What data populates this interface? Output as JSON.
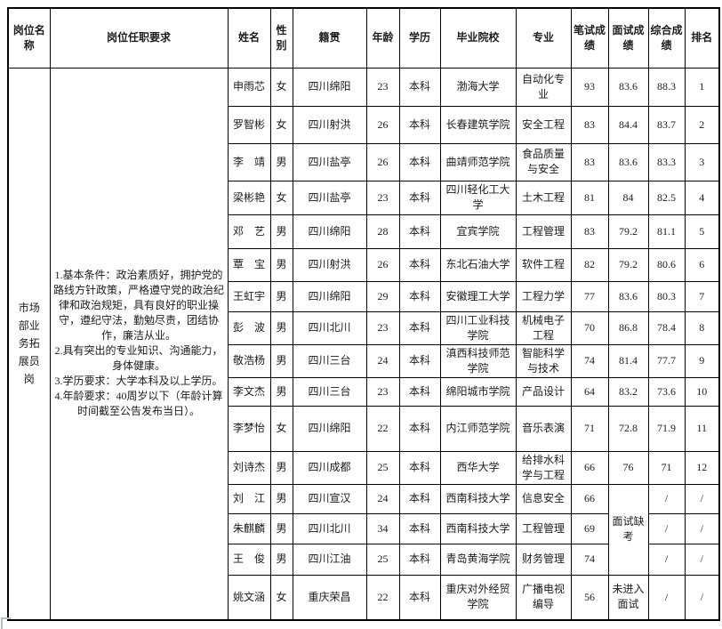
{
  "page": {
    "background_color": "#ffffff",
    "border_color": "#000000",
    "text_color": "#1c1c1c"
  },
  "table": {
    "headers": [
      "岗位名称",
      "岗位任职要求",
      "姓名",
      "性别",
      "籍贯",
      "年龄",
      "学历",
      "毕业院校",
      "专业",
      "笔试成绩",
      "面试成绩",
      "综合成绩",
      "排名"
    ],
    "position": {
      "name": "市场部业务拓展员岗",
      "requirements": "1.基本条件：政治素质好，拥护党的路线方针政策，严格遵守党的政治纪律和政治规矩，具有良好的职业操守，遵纪守法，勤勉尽责，团结协作，廉洁从业。\n2.具有突出的专业知识、沟通能力，身体健康。\n3.学历要求：大学本科及以上学历。\n4.年龄要求：40周岁以下（年龄计算时间截至公告发布当日）。"
    },
    "interview_merge": {
      "start_index": 12,
      "span": 3,
      "label": "面试缺考"
    },
    "rows": [
      {
        "name": "申雨芯",
        "gender": "女",
        "hometown": "四川绵阳",
        "age": "23",
        "education": "本科",
        "school": "渤海大学",
        "major": "自动化专业",
        "written": "93",
        "interview": "83.6",
        "overall": "88.3",
        "rank": "1"
      },
      {
        "name": "罗智彬",
        "gender": "女",
        "hometown": "四川射洪",
        "age": "26",
        "education": "本科",
        "school": "长春建筑学院",
        "major": "安全工程",
        "written": "83",
        "interview": "84.4",
        "overall": "83.7",
        "rank": "2"
      },
      {
        "name": "李　靖",
        "gender": "男",
        "hometown": "四川盐亭",
        "age": "26",
        "education": "本科",
        "school": "曲靖师范学院",
        "major": "食品质量与安全",
        "written": "83",
        "interview": "83.6",
        "overall": "83.3",
        "rank": "3"
      },
      {
        "name": "梁彬艳",
        "gender": "女",
        "hometown": "四川盐亭",
        "age": "23",
        "education": "本科",
        "school": "四川轻化工大学",
        "major": "土木工程",
        "written": "81",
        "interview": "84",
        "overall": "82.5",
        "rank": "4"
      },
      {
        "name": "邓　艺",
        "gender": "男",
        "hometown": "四川绵阳",
        "age": "28",
        "education": "本科",
        "school": "宜宾学院",
        "major": "工程管理",
        "written": "83",
        "interview": "79.2",
        "overall": "81.1",
        "rank": "5"
      },
      {
        "name": "覃　宝",
        "gender": "男",
        "hometown": "四川射洪",
        "age": "26",
        "education": "本科",
        "school": "东北石油大学",
        "major": "软件工程",
        "written": "82",
        "interview": "79.2",
        "overall": "80.6",
        "rank": "6"
      },
      {
        "name": "王虹宇",
        "gender": "男",
        "hometown": "四川绵阳",
        "age": "29",
        "education": "本科",
        "school": "安徽理工大学",
        "major": "工程力学",
        "written": "77",
        "interview": "83.6",
        "overall": "80.3",
        "rank": "7"
      },
      {
        "name": "彭　波",
        "gender": "男",
        "hometown": "四川北川",
        "age": "23",
        "education": "本科",
        "school": "四川工业科技学院",
        "major": "机械电子工程",
        "written": "70",
        "interview": "86.8",
        "overall": "78.4",
        "rank": "8"
      },
      {
        "name": "敬浩杨",
        "gender": "男",
        "hometown": "四川三台",
        "age": "24",
        "education": "本科",
        "school": "滇西科技师范学院",
        "major": "智能科学与技术",
        "written": "74",
        "interview": "81.4",
        "overall": "77.7",
        "rank": "9"
      },
      {
        "name": "李文杰",
        "gender": "男",
        "hometown": "四川三台",
        "age": "23",
        "education": "本科",
        "school": "绵阳城市学院",
        "major": "产品设计",
        "written": "64",
        "interview": "83.2",
        "overall": "73.6",
        "rank": "10"
      },
      {
        "name": "李梦怡",
        "gender": "女",
        "hometown": "四川绵阳",
        "age": "22",
        "education": "本科",
        "school": "内江师范学院",
        "major": "音乐表演",
        "written": "71",
        "interview": "72.8",
        "overall": "71.9",
        "rank": "11"
      },
      {
        "name": "刘诗杰",
        "gender": "男",
        "hometown": "四川成都",
        "age": "25",
        "education": "本科",
        "school": "西华大学",
        "major": "给排水科学与工程",
        "written": "66",
        "interview": "76",
        "overall": "71",
        "rank": "12"
      },
      {
        "name": "刘　江",
        "gender": "男",
        "hometown": "四川宣汉",
        "age": "24",
        "education": "本科",
        "school": "西南科技大学",
        "major": "信息安全",
        "written": "66",
        "interview": "",
        "overall": "/",
        "rank": "/"
      },
      {
        "name": "朱麒麟",
        "gender": "男",
        "hometown": "四川北川",
        "age": "34",
        "education": "本科",
        "school": "西南科技大学",
        "major": "工程管理",
        "written": "69",
        "interview": "",
        "overall": "/",
        "rank": "/"
      },
      {
        "name": "王　俊",
        "gender": "男",
        "hometown": "四川江油",
        "age": "25",
        "education": "本科",
        "school": "青岛黄海学院",
        "major": "财务管理",
        "written": "74",
        "interview": "",
        "overall": "/",
        "rank": "/"
      },
      {
        "name": "姚文涵",
        "gender": "女",
        "hometown": "重庆荣昌",
        "age": "22",
        "education": "本科",
        "school": "重庆对外经贸学院",
        "major": "广播电视编导",
        "written": "56",
        "interview": "未进入面试",
        "overall": "/",
        "rank": "/"
      }
    ]
  }
}
